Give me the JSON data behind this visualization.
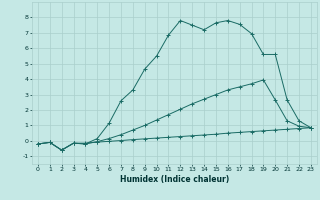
{
  "xlabel": "Humidex (Indice chaleur)",
  "bg_color": "#c5e8e5",
  "grid_color": "#aacfcc",
  "line_color": "#1a6b65",
  "xlim": [
    -0.5,
    23.5
  ],
  "ylim": [
    -1.5,
    9.0
  ],
  "xticks": [
    0,
    1,
    2,
    3,
    4,
    5,
    6,
    7,
    8,
    9,
    10,
    11,
    12,
    13,
    14,
    15,
    16,
    17,
    18,
    19,
    20,
    21,
    22,
    23
  ],
  "yticks": [
    -1,
    0,
    1,
    2,
    3,
    4,
    5,
    6,
    7,
    8
  ],
  "line1_x": [
    0,
    1,
    2,
    3,
    4,
    5,
    6,
    7,
    8,
    9,
    10,
    11,
    12,
    13,
    14,
    15,
    16,
    17,
    18,
    19,
    20,
    21,
    22,
    23
  ],
  "line1_y": [
    -0.2,
    -0.1,
    -0.6,
    -0.15,
    -0.15,
    -0.08,
    -0.03,
    0.02,
    0.08,
    0.13,
    0.18,
    0.23,
    0.28,
    0.33,
    0.38,
    0.43,
    0.5,
    0.55,
    0.6,
    0.65,
    0.7,
    0.75,
    0.8,
    0.85
  ],
  "line2_x": [
    0,
    1,
    2,
    3,
    4,
    5,
    6,
    7,
    8,
    9,
    10,
    11,
    12,
    13,
    14,
    15,
    16,
    17,
    18,
    19,
    20,
    21,
    22,
    23
  ],
  "line2_y": [
    -0.2,
    -0.1,
    -0.6,
    -0.15,
    -0.2,
    -0.05,
    0.15,
    0.4,
    0.7,
    1.0,
    1.35,
    1.7,
    2.05,
    2.4,
    2.7,
    3.0,
    3.3,
    3.5,
    3.7,
    3.95,
    2.65,
    1.3,
    0.95,
    0.85
  ],
  "line3_x": [
    0,
    1,
    2,
    3,
    4,
    5,
    6,
    7,
    8,
    9,
    10,
    11,
    12,
    13,
    14,
    15,
    16,
    17,
    18,
    19,
    20,
    21,
    22,
    23
  ],
  "line3_y": [
    -0.2,
    -0.1,
    -0.6,
    -0.15,
    -0.2,
    0.15,
    1.15,
    2.6,
    3.3,
    4.65,
    5.5,
    6.85,
    7.8,
    7.5,
    7.2,
    7.65,
    7.8,
    7.55,
    6.95,
    5.6,
    5.6,
    2.65,
    1.3,
    0.85
  ]
}
